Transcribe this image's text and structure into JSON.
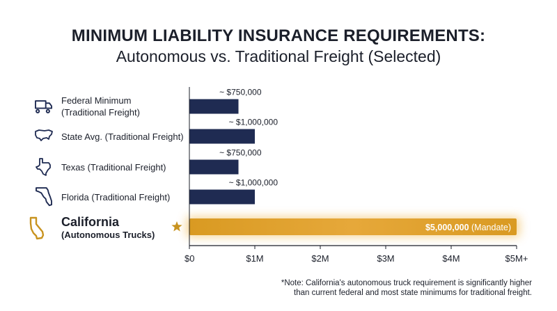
{
  "chart_data": {
    "type": "bar",
    "orientation": "horizontal",
    "title": "MINIMUM LIABILITY INSURANCE REQUIREMENTS:",
    "subtitle": "Autonomous vs. Traditional Freight (Selected)",
    "categories": [
      {
        "lines": [
          "Federal Minimum",
          "(Traditional Freight)"
        ],
        "icon": "truck-icon",
        "highlight": false
      },
      {
        "lines": [
          "State Avg. (Traditional Freight)"
        ],
        "icon": "usa-map-icon",
        "highlight": false
      },
      {
        "lines": [
          "Texas (Traditional Freight)"
        ],
        "icon": "texas-map-icon",
        "highlight": false
      },
      {
        "lines": [
          "Florida (Traditional Freight)"
        ],
        "icon": "florida-map-icon",
        "highlight": false
      },
      {
        "lines": [
          "California",
          "(Autonomous Trucks)"
        ],
        "icon": "california-map-icon",
        "highlight": true
      }
    ],
    "values": [
      750000,
      1000000,
      750000,
      1000000,
      5000000
    ],
    "data_labels": [
      "~ $750,000",
      "~ $1,000,000",
      "~ $750,000",
      "~ $1,000,000",
      "$5,000,000"
    ],
    "highlight_suffix": "(Mandate)",
    "highlight_marker": "star-icon",
    "x_ticks": [
      0,
      1000000,
      2000000,
      3000000,
      4000000,
      5000000
    ],
    "x_tick_labels": [
      "$0",
      "$1M",
      "$2M",
      "$3M",
      "$4M",
      "$5M+"
    ],
    "xlim": [
      0,
      5000000
    ],
    "grid": false,
    "colors": {
      "traditional": "#1f2b52",
      "autonomous": "#e0a02e",
      "highlight_icon": "#c8931f",
      "axis": "#1b1f2a"
    }
  },
  "note": {
    "lines": [
      "*Note: California's autonomous truck requirement is significantly higher",
      "than current federal and most state minimums for traditional freight."
    ]
  }
}
